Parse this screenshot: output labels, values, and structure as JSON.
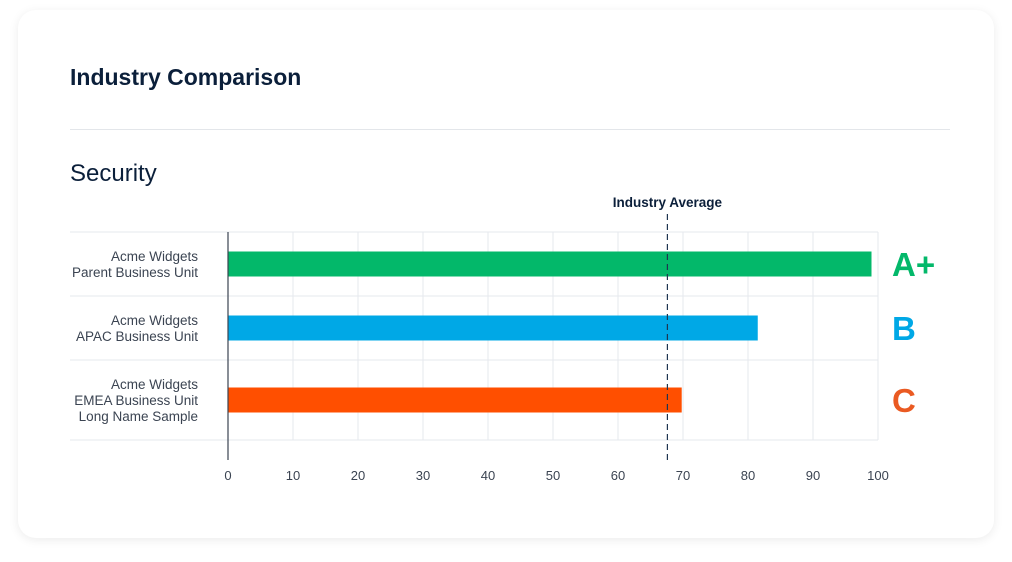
{
  "card": {
    "title": "Industry Comparison"
  },
  "section": {
    "title": "Security"
  },
  "chart_data": {
    "type": "bar",
    "orientation": "horizontal",
    "categories": [
      [
        "Acme Widgets",
        "Parent Business Unit"
      ],
      [
        "Acme Widgets",
        "APAC Business Unit"
      ],
      [
        "Acme Widgets",
        "EMEA Business Unit",
        "Long Name Sample"
      ]
    ],
    "values": [
      99,
      81.5,
      69.8
    ],
    "grades": [
      "A+",
      "B",
      "C"
    ],
    "colors": [
      "#03b86a",
      "#00a8e6",
      "#ff4f00"
    ],
    "grade_colors": [
      "#03b86a",
      "#00a8e6",
      "#ea5a22"
    ],
    "xlim": [
      0,
      100
    ],
    "xticks": [
      0,
      10,
      20,
      30,
      40,
      50,
      60,
      70,
      80,
      90,
      100
    ],
    "grid": true,
    "reference_line": {
      "label": "Industry Average",
      "value": 67.6
    }
  }
}
